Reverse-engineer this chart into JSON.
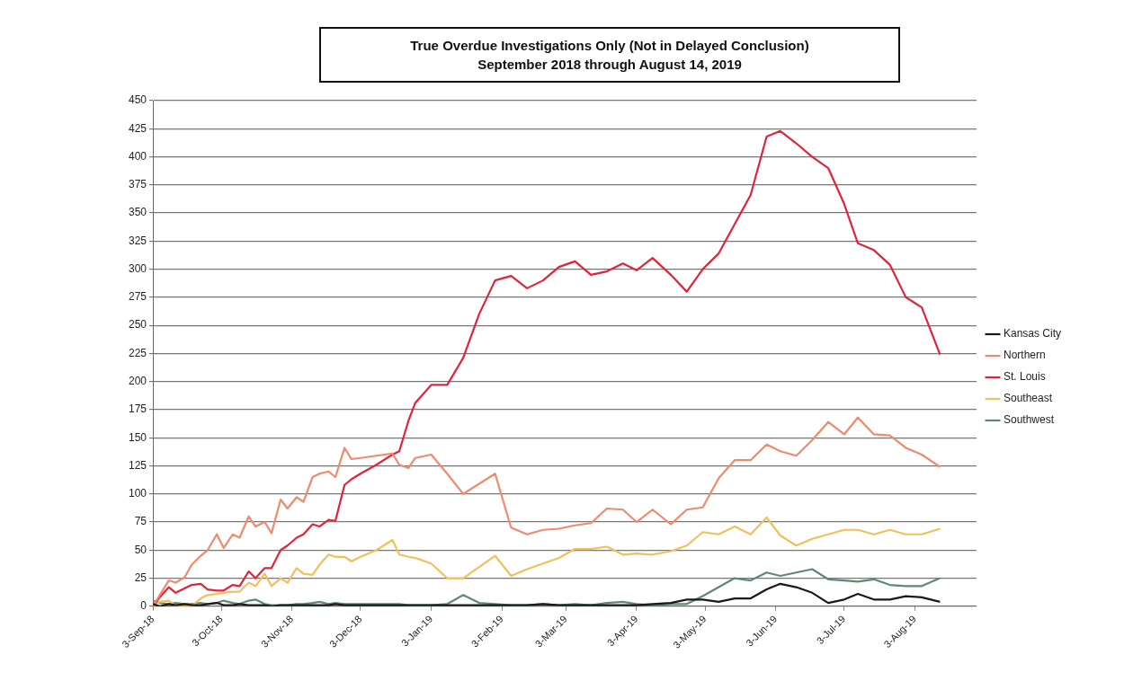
{
  "chart_data": {
    "type": "line",
    "title": "True Overdue Investigations Only (Not in Delayed Conclusion)",
    "subtitle": "September 2018 through August 14, 2019",
    "x": [
      "2018-09-03",
      "2018-09-06",
      "2018-09-10",
      "2018-09-13",
      "2018-09-17",
      "2018-09-20",
      "2018-09-24",
      "2018-09-27",
      "2018-10-01",
      "2018-10-04",
      "2018-10-08",
      "2018-10-11",
      "2018-10-15",
      "2018-10-18",
      "2018-10-22",
      "2018-10-25",
      "2018-10-29",
      "2018-11-01",
      "2018-11-05",
      "2018-11-08",
      "2018-11-12",
      "2018-11-15",
      "2018-11-19",
      "2018-11-22",
      "2018-11-26",
      "2018-11-29",
      "2018-12-03",
      "2018-12-10",
      "2018-12-17",
      "2018-12-20",
      "2018-12-24",
      "2018-12-27",
      "2019-01-03",
      "2019-01-10",
      "2019-01-17",
      "2019-01-24",
      "2019-01-31",
      "2019-02-07",
      "2019-02-14",
      "2019-02-21",
      "2019-02-28",
      "2019-03-07",
      "2019-03-14",
      "2019-03-21",
      "2019-03-28",
      "2019-04-03",
      "2019-04-10",
      "2019-04-18",
      "2019-04-25",
      "2019-05-02",
      "2019-05-09",
      "2019-05-16",
      "2019-05-23",
      "2019-05-30",
      "2019-06-05",
      "2019-06-12",
      "2019-06-19",
      "2019-06-26",
      "2019-07-03",
      "2019-07-09",
      "2019-07-16",
      "2019-07-23",
      "2019-07-30",
      "2019-08-06",
      "2019-08-14"
    ],
    "series": [
      {
        "name": "Kansas City",
        "color": "#1a1a1a",
        "values": [
          2,
          0,
          2,
          1,
          2,
          1,
          1,
          2,
          3,
          1,
          1,
          2,
          1,
          1,
          1,
          0,
          1,
          1,
          1,
          1,
          1,
          1,
          1,
          2,
          1,
          1,
          1,
          1,
          1,
          1,
          1,
          1,
          1,
          1,
          1,
          1,
          1,
          1,
          1,
          2,
          1,
          1,
          1,
          1,
          1,
          1,
          2,
          3,
          6,
          6,
          4,
          7,
          7,
          15,
          20,
          17,
          12,
          3,
          6,
          11,
          6,
          6,
          9,
          8,
          4
        ]
      },
      {
        "name": "Northern",
        "color": "#f08a6c",
        "values": [
          0,
          10,
          23,
          21,
          26,
          37,
          45,
          50,
          64,
          52,
          64,
          61,
          80,
          71,
          75,
          65,
          95,
          87,
          97,
          93,
          115,
          118,
          120,
          115,
          141,
          131,
          132,
          134,
          136,
          126,
          123,
          132,
          135,
          118,
          100,
          109,
          118,
          70,
          64,
          68,
          69,
          72,
          74,
          87,
          86,
          75,
          86,
          73,
          86,
          88,
          114,
          130,
          130,
          144,
          138,
          134,
          148,
          164,
          153,
          168,
          153,
          152,
          141,
          135,
          124
        ]
      },
      {
        "name": "St. Louis",
        "color": "#e0243a",
        "values": [
          0,
          8,
          17,
          12,
          16,
          19,
          20,
          15,
          14,
          14,
          19,
          18,
          31,
          25,
          34,
          34,
          50,
          54,
          61,
          64,
          73,
          71,
          77,
          76,
          108,
          113,
          118,
          126,
          135,
          138,
          165,
          181,
          197,
          197,
          221,
          260,
          290,
          294,
          283,
          290,
          302,
          307,
          295,
          298,
          305,
          299,
          310,
          295,
          280,
          300,
          314,
          340,
          366,
          418,
          423,
          412,
          400,
          390,
          358,
          323,
          317,
          304,
          275,
          266,
          224
        ]
      },
      {
        "name": "Southeast",
        "color": "#f2c05a",
        "values": [
          0,
          4,
          5,
          0,
          0,
          0,
          7,
          10,
          11,
          12,
          13,
          13,
          21,
          18,
          29,
          18,
          25,
          21,
          34,
          29,
          28,
          37,
          46,
          44,
          44,
          40,
          44,
          50,
          59,
          46,
          44,
          43,
          38,
          25,
          25,
          35,
          45,
          27,
          33,
          38,
          43,
          51,
          51,
          53,
          46,
          47,
          46,
          49,
          54,
          66,
          64,
          71,
          64,
          79,
          63,
          54,
          60,
          64,
          68,
          68,
          64,
          68,
          64,
          64,
          69
        ]
      },
      {
        "name": "Southwest",
        "color": "#5f8a70",
        "values": [
          5,
          3,
          2,
          3,
          2,
          2,
          3,
          2,
          3,
          5,
          3,
          2,
          5,
          6,
          2,
          1,
          1,
          1,
          2,
          2,
          3,
          4,
          2,
          3,
          2,
          2,
          2,
          2,
          2,
          2,
          1,
          1,
          1,
          2,
          10,
          3,
          2,
          1,
          1,
          2,
          1,
          2,
          1,
          3,
          4,
          2,
          1,
          2,
          2,
          9,
          17,
          25,
          23,
          30,
          27,
          30,
          33,
          24,
          23,
          22,
          24,
          19,
          18,
          18,
          25
        ]
      }
    ],
    "xlim": [
      "2018-09-03",
      "2019-08-30"
    ],
    "xticks": [
      {
        "value": "2018-09-03",
        "label": "3-Sep-18"
      },
      {
        "value": "2018-10-03",
        "label": "3-Oct-18"
      },
      {
        "value": "2018-11-03",
        "label": "3-Nov-18"
      },
      {
        "value": "2018-12-03",
        "label": "3-Dec-18"
      },
      {
        "value": "2019-01-03",
        "label": "3-Jan-19"
      },
      {
        "value": "2019-02-03",
        "label": "3-Feb-19"
      },
      {
        "value": "2019-03-03",
        "label": "3-Mar-19"
      },
      {
        "value": "2019-04-03",
        "label": "3-Apr-19"
      },
      {
        "value": "2019-05-03",
        "label": "3-May-19"
      },
      {
        "value": "2019-06-03",
        "label": "3-Jun-19"
      },
      {
        "value": "2019-07-03",
        "label": "3-Jul-19"
      },
      {
        "value": "2019-08-03",
        "label": "3-Aug-19"
      }
    ],
    "ylim": [
      0,
      450
    ],
    "yticks": [
      0,
      25,
      50,
      75,
      100,
      125,
      150,
      175,
      200,
      225,
      250,
      275,
      300,
      325,
      350,
      375,
      400,
      425,
      450
    ],
    "grid": "y",
    "legend": "right",
    "marker": "none",
    "line_style": "solid"
  }
}
